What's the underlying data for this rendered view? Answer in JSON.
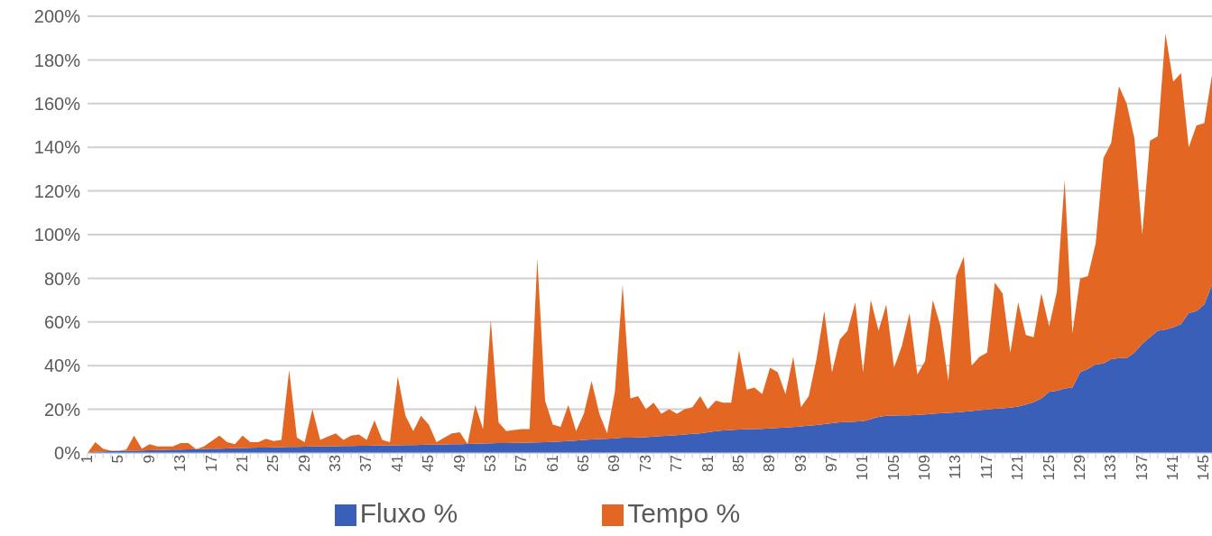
{
  "chart_data": {
    "type": "area",
    "stacked": true,
    "categories": [
      "1",
      null,
      null,
      null,
      "5",
      null,
      null,
      null,
      "9",
      null,
      null,
      null,
      "13",
      null,
      null,
      null,
      "17",
      null,
      null,
      null,
      "21",
      null,
      null,
      null,
      "25",
      null,
      null,
      null,
      "29",
      null,
      null,
      null,
      "33",
      null,
      null,
      null,
      "37",
      null,
      null,
      null,
      "41",
      null,
      null,
      null,
      "45",
      null,
      null,
      null,
      "49",
      null,
      null,
      null,
      "53",
      null,
      null,
      null,
      "57",
      null,
      null,
      null,
      "61",
      null,
      null,
      null,
      "65",
      null,
      null,
      null,
      "69",
      null,
      null,
      null,
      "73",
      null,
      null,
      null,
      "77",
      null,
      null,
      null,
      "81",
      null,
      null,
      null,
      "85",
      null,
      null,
      null,
      "89",
      null,
      null,
      null,
      "93",
      null,
      null,
      null,
      "97",
      null,
      null,
      null,
      "101",
      null,
      null,
      null,
      "105",
      null,
      null,
      null,
      "109",
      null,
      null,
      null,
      "113",
      null,
      null,
      null,
      "117",
      null,
      null,
      null,
      "121",
      null,
      null,
      null,
      "125",
      null,
      null,
      null,
      "129",
      null,
      null,
      null,
      "133",
      null,
      null,
      null,
      "137",
      null,
      null,
      null,
      "141",
      null,
      null,
      null,
      "145",
      null
    ],
    "series": [
      {
        "name": "Fluxo %",
        "color": "#3a5fb8",
        "values": [
          0,
          0.6,
          0.7,
          0.8,
          0.9,
          1,
          1,
          1.1,
          1.2,
          1.3,
          1.4,
          1.5,
          1.6,
          1.7,
          1.8,
          1.9,
          2,
          2,
          2.1,
          2.2,
          2.3,
          2.4,
          2.5,
          2.5,
          2.6,
          2.7,
          2.8,
          2.8,
          2.9,
          3,
          3,
          3.1,
          3.1,
          3.2,
          3.2,
          3.3,
          3.3,
          3.4,
          3.4,
          3.5,
          3.5,
          3.6,
          3.6,
          3.7,
          3.8,
          3.8,
          3.9,
          4,
          4,
          4.1,
          4.2,
          4.3,
          4.4,
          4.5,
          4.5,
          4.6,
          4.7,
          4.8,
          4.9,
          5,
          5.1,
          5.3,
          5.5,
          5.7,
          6,
          6.2,
          6.4,
          6.5,
          6.7,
          7,
          7,
          7.1,
          7.2,
          7.5,
          7.7,
          8,
          8.2,
          8.5,
          8.8,
          9,
          9.5,
          10,
          10.3,
          10.5,
          10.7,
          10.9,
          11,
          11.1,
          11.3,
          11.5,
          11.7,
          11.9,
          12.2,
          12.5,
          12.8,
          13.2,
          13.6,
          14,
          14.2,
          14.4,
          14.6,
          15.5,
          16.5,
          17,
          17.2,
          17.3,
          17.3,
          17.5,
          17.7,
          18,
          18.2,
          18.4,
          18.6,
          18.9,
          19.2,
          19.6,
          19.9,
          20.2,
          20.5,
          20.8,
          21.3,
          22.2,
          23.2,
          25,
          28,
          28.5,
          29.5,
          30,
          37,
          38.5,
          40.5,
          41,
          43,
          43.5,
          43.5,
          46,
          50,
          53,
          56,
          56.5,
          57.5,
          59,
          64,
          65,
          68,
          77
        ]
      },
      {
        "name": "Tempo %",
        "color": "#e36722",
        "values": [
          0,
          4.4,
          1.3,
          0.2,
          0.1,
          0.5,
          7,
          0.9,
          2.8,
          1.7,
          1.6,
          1.5,
          2.9,
          2.8,
          0,
          1.1,
          3.5,
          6,
          2.9,
          1.8,
          5.7,
          2.6,
          2.5,
          4,
          2.9,
          3.3,
          35.2,
          4.2,
          2.1,
          17,
          3,
          4.4,
          5.9,
          2.8,
          4.8,
          5.2,
          2.7,
          11.6,
          2.6,
          1.5,
          31.5,
          13.4,
          6.4,
          13.3,
          9.2,
          1.2,
          3.1,
          5,
          5.5,
          0,
          17.8,
          6.7,
          56.6,
          9.5,
          5.5,
          5.9,
          6.3,
          6.2,
          84.1,
          19,
          7.9,
          6.7,
          16.5,
          4.3,
          12,
          26.8,
          11.6,
          2.5,
          21.3,
          70,
          18,
          18.9,
          12.8,
          15.5,
          10.3,
          12,
          9.8,
          11.5,
          12.2,
          17,
          10.5,
          14,
          12.7,
          12.5,
          36.3,
          18.1,
          19,
          15.9,
          27.7,
          25.5,
          15.3,
          32.1,
          8.8,
          13.5,
          30.2,
          51.8,
          23.4,
          38,
          41.8,
          54.6,
          22.4,
          54.5,
          39.5,
          51,
          21.8,
          31.7,
          46.7,
          18.5,
          24.3,
          52,
          39.8,
          14.6,
          62.4,
          71.1,
          20.8,
          24.4,
          26.1,
          57.8,
          52.5,
          25.2,
          47.7,
          31.8,
          29.8,
          48,
          30,
          45.5,
          95.5,
          25,
          43,
          42.5,
          55.5,
          94,
          99,
          124.5,
          116.5,
          98,
          50,
          90,
          89,
          135.5,
          112.5,
          115,
          76,
          85,
          83,
          96
        ]
      }
    ],
    "ylim": [
      0,
      200
    ],
    "yticks": [
      {
        "value": 0,
        "label": "0%"
      },
      {
        "value": 20,
        "label": "20%"
      },
      {
        "value": 40,
        "label": "40%"
      },
      {
        "value": 60,
        "label": "60%"
      },
      {
        "value": 80,
        "label": "80%"
      },
      {
        "value": 100,
        "label": "100%"
      },
      {
        "value": 120,
        "label": "120%"
      },
      {
        "value": 140,
        "label": "140%"
      },
      {
        "value": 160,
        "label": "160%"
      },
      {
        "value": 180,
        "label": "180%"
      },
      {
        "value": 200,
        "label": "200%"
      }
    ],
    "grid": "y",
    "legend": "bottom"
  }
}
